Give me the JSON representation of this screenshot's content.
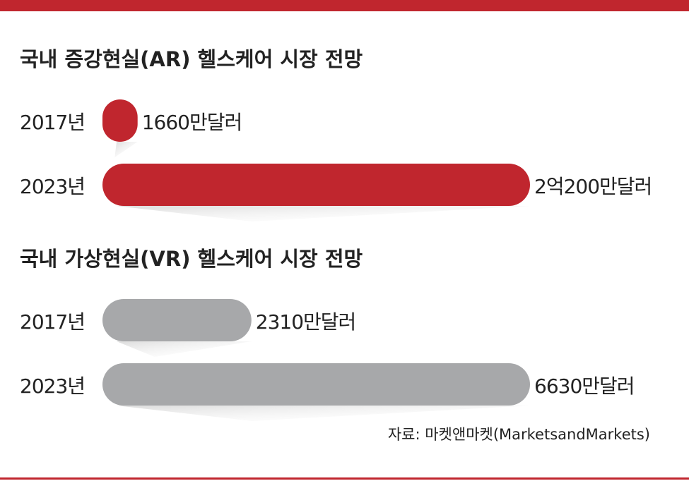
{
  "chart_data": [
    {
      "type": "bar",
      "title": "국내 증강현실(AR) 헬스케어 시장 전망",
      "categories": [
        "2017년",
        "2023년"
      ],
      "values": [
        1660,
        20200
      ],
      "value_labels": [
        "1660만달러",
        "2억200만달러"
      ],
      "color": "#c0262e"
    },
    {
      "type": "bar",
      "title": "국내 가상현실(VR) 헬스케어 시장 전망",
      "categories": [
        "2017년",
        "2023년"
      ],
      "values": [
        2310,
        6630
      ],
      "value_labels": [
        "2310만달러",
        "6630만달러"
      ],
      "color": "#a7a8aa"
    }
  ],
  "source": "자료: 마켓앤마켓(MarketsandMarkets)"
}
